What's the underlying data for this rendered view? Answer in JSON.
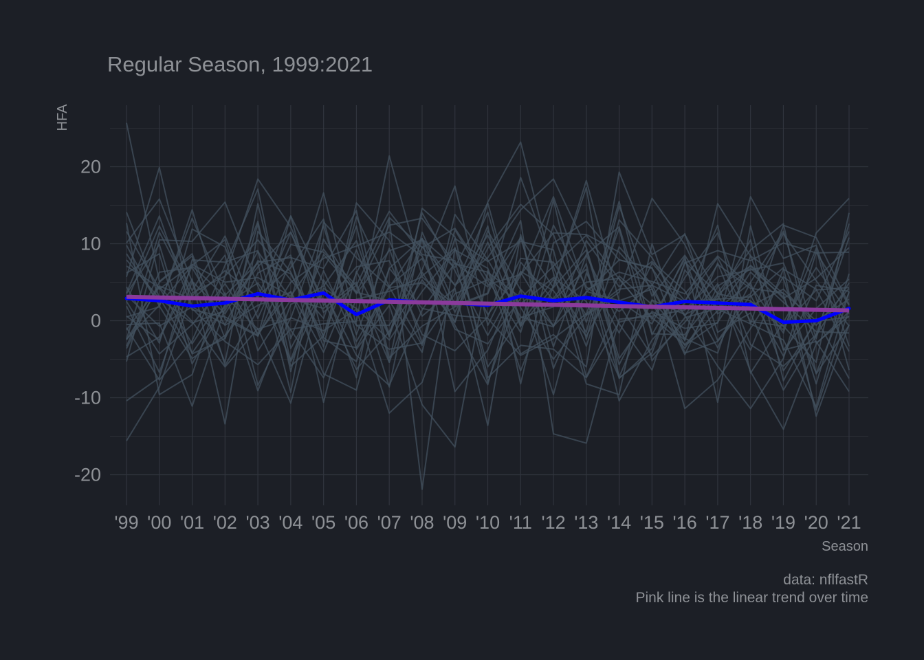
{
  "chart_data": {
    "type": "line",
    "title": "Regular Season, 1999:2021",
    "xlabel": "Season",
    "ylabel": "HFA",
    "caption_lines": [
      "data: nflfastR",
      "Pink line is the linear trend over time"
    ],
    "x": [
      1999,
      2000,
      2001,
      2002,
      2003,
      2004,
      2005,
      2006,
      2007,
      2008,
      2009,
      2010,
      2011,
      2012,
      2013,
      2014,
      2015,
      2016,
      2017,
      2018,
      2019,
      2020,
      2021
    ],
    "x_tick_labels": [
      "'99",
      "'00",
      "'01",
      "'02",
      "'03",
      "'04",
      "'05",
      "'06",
      "'07",
      "'08",
      "'09",
      "'10",
      "'11",
      "'12",
      "'13",
      "'14",
      "'15",
      "'16",
      "'17",
      "'18",
      "'19",
      "'20",
      "'21"
    ],
    "y_ticks": [
      -20,
      -10,
      0,
      10,
      20
    ],
    "y_tick_labels": [
      "-20",
      "-10",
      "0",
      "10",
      "20"
    ],
    "ylim": [
      -24.5,
      28
    ],
    "grid": true,
    "colors": {
      "background": "#1c1f26",
      "grid": "#30343d",
      "team_lines": "#43525f",
      "average_line": "#0000ff",
      "trend_line": "#8b3a9c",
      "text": "#8e9196"
    },
    "series": [
      {
        "name": "",
        "role": "average",
        "values": [
          2.9,
          2.6,
          1.9,
          2.3,
          3.5,
          2.7,
          3.6,
          0.8,
          2.7,
          2.4,
          2.3,
          2.0,
          3.2,
          2.6,
          3.0,
          2.4,
          1.8,
          2.5,
          2.3,
          2.1,
          -0.2,
          0.0,
          1.6
        ]
      },
      {
        "name": "",
        "role": "trend",
        "values": [
          3.1,
          3.02,
          2.94,
          2.86,
          2.78,
          2.7,
          2.62,
          2.54,
          2.46,
          2.38,
          2.3,
          2.22,
          2.14,
          2.06,
          1.98,
          1.9,
          1.82,
          1.74,
          1.66,
          1.58,
          1.5,
          1.42,
          1.34
        ]
      }
    ],
    "team_series": [
      [
        25.7,
        5.1,
        8.7,
        -2.3,
        12.6,
        -6.6,
        10.6,
        3.7,
        2.6,
        -4.1,
        13.8,
        7.9,
        0.5,
        -0.8,
        10.4,
        4.4,
        7.7,
        3.9,
        -3.5,
        5.0,
        11.6,
        -2.3,
        12.6
      ],
      [
        -15.6,
        -8.6,
        3.6,
        5.8,
        10.5,
        5.3,
        0.3,
        12.3,
        -5.4,
        14.6,
        10.9,
        -7.4,
        -3.2,
        -3.7,
        -7.4,
        -0.2,
        1.0,
        -2.5,
        7.5,
        -3.1,
        -5.9,
        -1.8,
        10.8
      ],
      [
        -10.4,
        -7.4,
        7.9,
        7.6,
        9.1,
        -5.9,
        -2.0,
        13.5,
        4.4,
        -3.2,
        10.7,
        7.7,
        10.3,
        9.2,
        -7.3,
        2.1,
        -4.6,
        -0.2,
        4.8,
        -6.6,
        -14.1,
        -3.0,
        1.2
      ],
      [
        14.1,
        3.0,
        -4.2,
        1.9,
        12.9,
        -5.3,
        3.9,
        -4.5,
        -8.4,
        1.4,
        7.5,
        4.4,
        10.8,
        -3.4,
        8.6,
        12.2,
        -1.8,
        5.6,
        11.4,
        -0.4,
        -2.5,
        -11.2,
        3.8
      ],
      [
        -0.5,
        -0.3,
        -11.1,
        1.7,
        7.0,
        11.5,
        1.1,
        4.6,
        -5.4,
        6.3,
        -0.6,
        -8.3,
        7.6,
        2.7,
        6.7,
        -7.3,
        2.7,
        -2.3,
        -4.2,
        8.5,
        -3.8,
        -2.7,
        -9.2
      ],
      [
        5.7,
        19.9,
        1.6,
        -2.7,
        -5.7,
        -1.1,
        -0.4,
        -0.1,
        21.4,
        5.8,
        9.4,
        0.8,
        6.3,
        -0.7,
        3.7,
        7.9,
        6.8,
        0.6,
        7.3,
        4.2,
        3.6,
        0.0,
        2.8
      ],
      [
        8.7,
        2.1,
        7.2,
        10.5,
        -3.9,
        2.7,
        16.6,
        -0.6,
        -0.6,
        6.6,
        17.5,
        -0.6,
        8.1,
        7.6,
        0.7,
        15.5,
        -1.7,
        -1.8,
        3.5,
        2.6,
        -1.2,
        9.4,
        -6.4
      ],
      [
        1.9,
        -6.7,
        5.1,
        0.9,
        7.6,
        8.2,
        6.8,
        14.3,
        -4.8,
        -0.7,
        1.8,
        10.2,
        -0.8,
        15.7,
        -2.4,
        13.1,
        8.2,
        0.7,
        -5.9,
        -11.4,
        -4.9,
        8.9,
        2.0
      ],
      [
        -2.4,
        2.0,
        13.3,
        3.3,
        7.5,
        -9.3,
        12.8,
        8.2,
        4.3,
        10.7,
        1.1,
        9.4,
        15.1,
        11.2,
        -0.2,
        12.0,
        -5.2,
        0.4,
        1.6,
        4.9,
        -6.5,
        -0.1,
        0.5
      ],
      [
        3.3,
        -0.7,
        1.8,
        -0.5,
        7.8,
        6.1,
        -2.0,
        9.2,
        -1.7,
        10.6,
        6.9,
        15.3,
        -0.4,
        5.4,
        -1.5,
        14.9,
        3.2,
        8.5,
        1.6,
        7.2,
        3.5,
        -11.6,
        1.5
      ],
      [
        -2.4,
        11.5,
        3.2,
        8.5,
        -8.4,
        0.4,
        -1.3,
        1.5,
        -12.0,
        -8.0,
        4.4,
        14.1,
        -0.7,
        4.4,
        17.3,
        -7.5,
        -3.6,
        7.6,
        3.6,
        9.2,
        12.6,
        -6.9,
        -0.6
      ],
      [
        10.1,
        15.8,
        5.1,
        -5.4,
        15.2,
        -2.3,
        8.6,
        3.7,
        12.4,
        13.3,
        7.4,
        6.3,
        3.0,
        2.9,
        8.5,
        -0.4,
        -6.4,
        6.6,
        1.5,
        -0.4,
        12.4,
        10.8,
        2.1
      ],
      [
        -4.7,
        -2.1,
        5.4,
        -13.4,
        11.6,
        6.3,
        -2.6,
        -3.5,
        4.3,
        4.9,
        1.8,
        3.5,
        13.0,
        -14.7,
        -15.9,
        0.2,
        0.6,
        1.4,
        5.7,
        6.6,
        7.5,
        -2.9,
        0.6
      ],
      [
        -2.5,
        4.4,
        -0.1,
        -6.0,
        -1.0,
        -10.7,
        5.3,
        -0.6,
        -3.7,
        -2.9,
        3.5,
        5.3,
        -1.5,
        12.4,
        4.4,
        1.2,
        4.6,
        2.5,
        2.8,
        3.1,
        6.9,
        -12.4,
        -0.5
      ],
      [
        2.5,
        12.3,
        3.9,
        11.0,
        0.3,
        9.9,
        8.9,
        4.6,
        13.4,
        9.5,
        12.0,
        5.5,
        2.2,
        5.6,
        2.5,
        -7.4,
        -4.2,
        7.5,
        9.1,
        7.8,
        10.1,
        8.8,
        8.9
      ],
      [
        0.5,
        1.8,
        14.4,
        0.2,
        -2.0,
        13.6,
        -2.2,
        -5.3,
        6.8,
        1.6,
        0.7,
        0.3,
        -4.5,
        -2.3,
        0.9,
        4.1,
        4.6,
        11.3,
        -1.5,
        1.0,
        -9.0,
        -1.9,
        4.9
      ],
      [
        -5.3,
        10.5,
        10.3,
        15.4,
        4.5,
        -5.1,
        6.5,
        -2.7,
        4.5,
        8.1,
        -1.1,
        -3.0,
        2.9,
        7.1,
        11.1,
        5.4,
        0.4,
        -3.1,
        1.3,
        1.9,
        4.1,
        -0.6,
        4.2
      ],
      [
        12.7,
        -9.6,
        -7.0,
        5.8,
        18.4,
        12.2,
        2.0,
        7.0,
        7.8,
        -1.8,
        -3.9,
        0.5,
        10.8,
        4.3,
        9.2,
        -5.7,
        2.7,
        0.8,
        2.8,
        10.5,
        -7.8,
        0.3,
        -7.5
      ],
      [
        3.6,
        13.6,
        1.4,
        0.5,
        -1.9,
        5.0,
        8.1,
        9.7,
        11.5,
        8.4,
        -0.2,
        11.7,
        4.0,
        -9.6,
        6.2,
        -1.6,
        7.5,
        2.6,
        8.2,
        -0.1,
        -0.7,
        -5.4,
        14.0
      ],
      [
        7.1,
        4.3,
        -3.0,
        3.6,
        -9.1,
        2.1,
        4.5,
        10.4,
        -2.1,
        14.0,
        6.5,
        -1.9,
        5.9,
        16.1,
        4.0,
        6.3,
        5.1,
        3.5,
        8.4,
        4.5,
        -1.6,
        11.4,
        15.9
      ],
      [
        -3.3,
        6.3,
        6.9,
        -0.6,
        2.0,
        3.7,
        -6.9,
        -9.0,
        6.8,
        10.7,
        -9.2,
        -3.8,
        6.4,
        3.9,
        -2.0,
        5.8,
        2.1,
        -3.6,
        3.3,
        -3.8,
        6.7,
        4.1,
        -4.0
      ],
      [
        9.8,
        1.9,
        -4.9,
        -1.9,
        3.2,
        6.9,
        13.2,
        -3.7,
        2.0,
        -10.9,
        -16.4,
        6.5,
        -6.5,
        4.5,
        18.2,
        2.6,
        -0.4,
        8.3,
        -10.6,
        12.3,
        -3.8,
        1.6,
        5.4
      ],
      [
        -1.2,
        4.5,
        2.8,
        6.5,
        3.0,
        13.6,
        4.9,
        -7.4,
        13.2,
        -21.9,
        9.5,
        -6.0,
        0.4,
        1.8,
        5.0,
        5.5,
        0.2,
        8.0,
        -2.6,
        3.3,
        -4.6,
        4.6,
        3.8
      ],
      [
        6.2,
        8.7,
        -5.6,
        2.1,
        4.9,
        -1.2,
        -7.4,
        2.8,
        3.8,
        5.7,
        2.0,
        3.6,
        18.6,
        7.0,
        -3.3,
        9.6,
        4.7,
        -4.4,
        4.5,
        7.1,
        2.9,
        5.5,
        9.5
      ],
      [
        4.4,
        -2.9,
        11.9,
        9.6,
        -2.0,
        7.7,
        -3.4,
        15.3,
        10.4,
        0.6,
        4.2,
        -13.6,
        11.2,
        -6.2,
        3.8,
        2.6,
        4.1,
        -3.2,
        -0.2,
        6.3,
        2.4,
        -1.4,
        -1.6
      ],
      [
        -3.6,
        5.0,
        8.4,
        -5.8,
        1.4,
        11.5,
        2.6,
        -6.3,
        -1.4,
        5.3,
        -0.2,
        15.4,
        23.2,
        6.2,
        -8.2,
        -9.6,
        10.0,
        -2.6,
        15.2,
        8.4,
        5.5,
        -8.2,
        6.1
      ],
      [
        -0.9,
        -7.7,
        -2.6,
        7.2,
        17.1,
        -3.6,
        4.2,
        1.6,
        -2.5,
        3.8,
        9.2,
        6.8,
        -4.3,
        -1.8,
        -6.0,
        19.3,
        8.6,
        11.2,
        3.4,
        6.8,
        3.1,
        -6.8,
        3.7
      ],
      [
        3.5,
        9.9,
        -4.3,
        -2.3,
        6.2,
        8.5,
        -10.6,
        6.4,
        -2.0,
        9.6,
        4.6,
        8.2,
        14.4,
        18.4,
        9.5,
        -4.9,
        1.2,
        -1.0,
        -0.3,
        16.1,
        8.1,
        9.8,
        -3.3
      ],
      [
        0.6,
        -2.5,
        7.1,
        3.2,
        -1.1,
        0.3,
        12.3,
        -1.8,
        9.4,
        -2.9,
        11.8,
        4.7,
        6.0,
        11.4,
        11.2,
        8.9,
        4.2,
        -11.4,
        -7.7,
        -1.0,
        5.7,
        2.6,
        11.6
      ],
      [
        2.5,
        -4.3,
        -0.5,
        4.8,
        -1.7,
        3.8,
        -4.1,
        6.2,
        14.2,
        8.6,
        7.8,
        -8.0,
        4.1,
        -0.7,
        7.4,
        -10.4,
        -2.5,
        2.3,
        12.4,
        -6.8,
        -0.2,
        6.9,
        0.9
      ],
      [
        11.6,
        4.1,
        7.3,
        5.0,
        5.6,
        3.2,
        9.3,
        3.5,
        9.1,
        10.5,
        4.6,
        11.1,
        1.7,
        -5.0,
        0.7,
        3.7,
        15.9,
        9.9,
        0.9,
        3.5,
        11.3,
        5.2,
        -0.7
      ],
      [
        7.9,
        2.9,
        -0.3,
        1.3,
        9.0,
        2.8,
        1.6,
        5.0,
        -8.6,
        11.5,
        2.1,
        12.3,
        -8.2,
        10.1,
        12.9,
        7.9,
        6.9,
        -4.2,
        -2.7,
        2.5,
        -0.7,
        4.0,
        4.3
      ]
    ]
  }
}
